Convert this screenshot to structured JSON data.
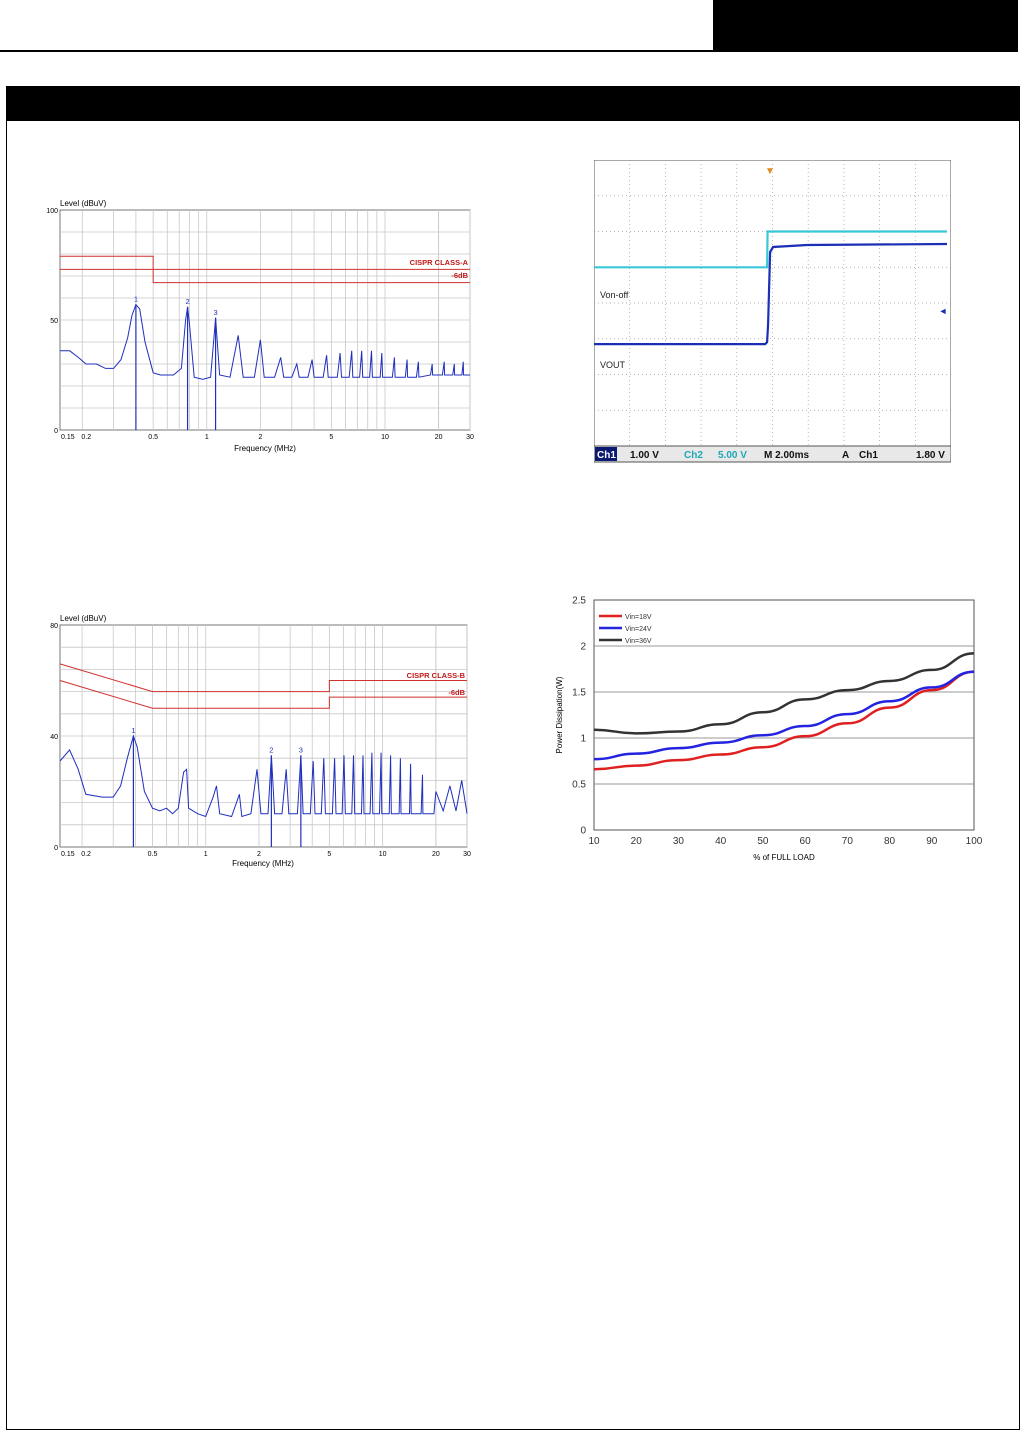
{
  "colors": {
    "emi_trace": "#1f2fbf",
    "limit_line": "#d0302c",
    "grid": "#c8c8c8",
    "scope_bg": "#ffffff",
    "scope_ch1": "#1b2fb4",
    "scope_ch2": "#38c8d8",
    "series_18v": "#e02020",
    "series_24v": "#2424e0",
    "series_36v": "#333333"
  },
  "chart_data": [
    {
      "id": "emi-class-a",
      "type": "line",
      "ylabel": "Level (dBuV)",
      "xlabel": "Frequency (MHz)",
      "xscale": "log",
      "xlim": [
        0.15,
        30
      ],
      "ylim": [
        0,
        100
      ],
      "x_tick_labels": [
        "0.15",
        "0.2",
        "0.5",
        "1",
        "2",
        "5",
        "10",
        "20",
        "30"
      ],
      "y_tick_labels": [
        "100",
        "50",
        "0"
      ],
      "limit_labels": [
        "CISPR CLASS-A",
        "-6dB"
      ],
      "marker_labels": [
        "1",
        "2",
        "3"
      ],
      "limits": [
        {
          "points": [
            [
              0.15,
              79
            ],
            [
              0.5,
              79
            ],
            [
              0.5,
              73
            ],
            [
              30,
              73
            ]
          ]
        },
        {
          "points": [
            [
              0.15,
              73
            ],
            [
              0.5,
              73
            ],
            [
              0.5,
              67
            ],
            [
              30,
              67
            ]
          ]
        }
      ],
      "markers": [
        {
          "label": "1",
          "x": 0.4,
          "y": 57
        },
        {
          "label": "2",
          "x": 0.78,
          "y": 56
        },
        {
          "label": "3",
          "x": 1.12,
          "y": 51
        }
      ],
      "trace": [
        [
          0.15,
          36
        ],
        [
          0.17,
          36
        ],
        [
          0.19,
          33
        ],
        [
          0.21,
          30
        ],
        [
          0.24,
          30
        ],
        [
          0.27,
          28
        ],
        [
          0.3,
          28
        ],
        [
          0.33,
          32
        ],
        [
          0.36,
          42
        ],
        [
          0.38,
          52
        ],
        [
          0.4,
          57
        ],
        [
          0.42,
          55
        ],
        [
          0.45,
          40
        ],
        [
          0.5,
          26
        ],
        [
          0.55,
          25
        ],
        [
          0.65,
          25
        ],
        [
          0.72,
          28
        ],
        [
          0.76,
          50
        ],
        [
          0.78,
          56
        ],
        [
          0.8,
          48
        ],
        [
          0.85,
          24
        ],
        [
          0.95,
          23
        ],
        [
          1.05,
          24
        ],
        [
          1.12,
          51
        ],
        [
          1.18,
          25
        ],
        [
          1.35,
          24
        ],
        [
          1.5,
          43
        ],
        [
          1.6,
          24
        ],
        [
          1.85,
          24
        ],
        [
          2.0,
          41
        ],
        [
          2.1,
          24
        ],
        [
          2.4,
          24
        ],
        [
          2.6,
          33
        ],
        [
          2.7,
          24
        ],
        [
          3.0,
          24
        ],
        [
          3.2,
          30
        ],
        [
          3.3,
          24
        ],
        [
          3.7,
          24
        ],
        [
          3.9,
          32
        ],
        [
          4.0,
          24
        ],
        [
          4.5,
          24
        ],
        [
          4.7,
          34
        ],
        [
          4.8,
          24
        ],
        [
          5.4,
          24
        ],
        [
          5.6,
          35
        ],
        [
          5.7,
          24
        ],
        [
          6.3,
          24
        ],
        [
          6.5,
          36
        ],
        [
          6.6,
          24
        ],
        [
          7.2,
          24
        ],
        [
          7.4,
          36
        ],
        [
          7.5,
          24
        ],
        [
          8.2,
          24
        ],
        [
          8.4,
          36
        ],
        [
          8.5,
          24
        ],
        [
          9.4,
          24
        ],
        [
          9.6,
          35
        ],
        [
          9.7,
          24
        ],
        [
          11,
          24
        ],
        [
          11.3,
          33
        ],
        [
          11.4,
          24
        ],
        [
          13,
          24
        ],
        [
          13.3,
          32
        ],
        [
          13.4,
          24
        ],
        [
          15,
          24
        ],
        [
          15.4,
          31
        ],
        [
          15.5,
          24
        ],
        [
          18,
          25
        ],
        [
          18.4,
          30
        ],
        [
          18.5,
          25
        ],
        [
          21,
          25
        ],
        [
          21.5,
          31
        ],
        [
          21.6,
          25
        ],
        [
          24,
          25
        ],
        [
          24.5,
          30
        ],
        [
          24.6,
          25
        ],
        [
          27,
          25
        ],
        [
          27.5,
          31
        ],
        [
          27.6,
          25
        ],
        [
          30,
          25
        ]
      ]
    },
    {
      "id": "turn-on-scope",
      "type": "line",
      "trace_labels": [
        "Von-off",
        "VOUT"
      ],
      "status_bar": [
        "Ch1",
        "1.00 V",
        "Ch2",
        "5.00 V",
        "M 2.00ms",
        "A",
        "Ch1",
        "1.80 V"
      ],
      "time_per_div_ms": 2.0,
      "traces": [
        {
          "name": "Von-off",
          "color_key": "scope_ch2",
          "low_div": 5.0,
          "high_div": 6.0,
          "step_div": 4.85
        },
        {
          "name": "VOUT",
          "color_key": "scope_ch1",
          "low_div": 2.85,
          "high_div": 5.65,
          "step_div": 4.85
        }
      ]
    },
    {
      "id": "emi-class-b",
      "type": "line",
      "ylabel": "Level (dBuV)",
      "xlabel": "Frequency (MHz)",
      "xscale": "log",
      "xlim": [
        0.15,
        30
      ],
      "ylim": [
        0,
        80
      ],
      "x_tick_labels": [
        "0.15",
        "0.2",
        "0.5",
        "1",
        "2",
        "5",
        "10",
        "20",
        "30"
      ],
      "y_tick_labels": [
        "80",
        "40",
        "0"
      ],
      "limit_labels": [
        "CISPR CLASS-B",
        "-6dB"
      ],
      "marker_labels": [
        "1",
        "2",
        "3"
      ],
      "limits": [
        {
          "points": [
            [
              0.15,
              66
            ],
            [
              0.5,
              56
            ],
            [
              5,
              56
            ],
            [
              5,
              60
            ],
            [
              30,
              60
            ]
          ]
        },
        {
          "points": [
            [
              0.15,
              60
            ],
            [
              0.5,
              50
            ],
            [
              5,
              50
            ],
            [
              5,
              54
            ],
            [
              30,
              54
            ]
          ]
        }
      ],
      "markers": [
        {
          "label": "1",
          "x": 0.39,
          "y": 40
        },
        {
          "label": "2",
          "x": 2.35,
          "y": 33
        },
        {
          "label": "3",
          "x": 3.45,
          "y": 33
        }
      ],
      "trace": [
        [
          0.15,
          31
        ],
        [
          0.17,
          35
        ],
        [
          0.19,
          28
        ],
        [
          0.21,
          19
        ],
        [
          0.26,
          18
        ],
        [
          0.3,
          18
        ],
        [
          0.33,
          22
        ],
        [
          0.36,
          32
        ],
        [
          0.39,
          40
        ],
        [
          0.41,
          36
        ],
        [
          0.45,
          20
        ],
        [
          0.5,
          14
        ],
        [
          0.55,
          13
        ],
        [
          0.6,
          14
        ],
        [
          0.65,
          12
        ],
        [
          0.7,
          14
        ],
        [
          0.75,
          27
        ],
        [
          0.78,
          28
        ],
        [
          0.8,
          14
        ],
        [
          0.9,
          12
        ],
        [
          1.0,
          11
        ],
        [
          1.1,
          18
        ],
        [
          1.15,
          22
        ],
        [
          1.2,
          12
        ],
        [
          1.4,
          11
        ],
        [
          1.55,
          19
        ],
        [
          1.6,
          11
        ],
        [
          1.8,
          12
        ],
        [
          1.95,
          28
        ],
        [
          2.05,
          12
        ],
        [
          2.25,
          12
        ],
        [
          2.35,
          33
        ],
        [
          2.45,
          12
        ],
        [
          2.7,
          12
        ],
        [
          2.85,
          28
        ],
        [
          2.95,
          12
        ],
        [
          3.3,
          12
        ],
        [
          3.45,
          33
        ],
        [
          3.55,
          12
        ],
        [
          3.9,
          12
        ],
        [
          4.05,
          31
        ],
        [
          4.15,
          12
        ],
        [
          4.5,
          12
        ],
        [
          4.65,
          32
        ],
        [
          4.75,
          12
        ],
        [
          5.2,
          12
        ],
        [
          5.35,
          32
        ],
        [
          5.45,
          12
        ],
        [
          5.9,
          12
        ],
        [
          6.05,
          33
        ],
        [
          6.15,
          12
        ],
        [
          6.7,
          12
        ],
        [
          6.85,
          33
        ],
        [
          6.95,
          12
        ],
        [
          7.6,
          12
        ],
        [
          7.75,
          33
        ],
        [
          7.85,
          12
        ],
        [
          8.5,
          12
        ],
        [
          8.7,
          34
        ],
        [
          8.8,
          12
        ],
        [
          9.6,
          12
        ],
        [
          9.8,
          34
        ],
        [
          9.9,
          12
        ],
        [
          10.9,
          12
        ],
        [
          11.1,
          33
        ],
        [
          11.2,
          12
        ],
        [
          12.4,
          12
        ],
        [
          12.6,
          32
        ],
        [
          12.7,
          12
        ],
        [
          14.2,
          12
        ],
        [
          14.4,
          30
        ],
        [
          14.5,
          12
        ],
        [
          16.5,
          12
        ],
        [
          16.8,
          26
        ],
        [
          16.9,
          12
        ],
        [
          19.5,
          12
        ],
        [
          20,
          20
        ],
        [
          22,
          13
        ],
        [
          24,
          22
        ],
        [
          26,
          13
        ],
        [
          28,
          24
        ],
        [
          30,
          12
        ]
      ]
    },
    {
      "id": "power-dissipation",
      "type": "line",
      "ylabel": "Power Dissipation(W)",
      "xlabel": "% of FULL LOAD",
      "x": [
        10,
        20,
        30,
        40,
        50,
        60,
        70,
        80,
        90,
        100
      ],
      "xlim": [
        10,
        100
      ],
      "ylim": [
        0,
        2.5
      ],
      "x_tick_labels": [
        "10",
        "20",
        "30",
        "40",
        "50",
        "60",
        "70",
        "80",
        "90",
        "100"
      ],
      "y_tick_labels": [
        "0",
        "0.5",
        "1",
        "1.5",
        "2",
        "2.5"
      ],
      "legend_position": "top-left",
      "series": [
        {
          "name": "Vin=18V",
          "color_key": "series_18v",
          "values": [
            0.66,
            0.7,
            0.76,
            0.82,
            0.9,
            1.02,
            1.16,
            1.33,
            1.52,
            1.72
          ]
        },
        {
          "name": "Vin=24V",
          "color_key": "series_24v",
          "values": [
            0.77,
            0.83,
            0.89,
            0.95,
            1.03,
            1.13,
            1.26,
            1.4,
            1.55,
            1.72
          ]
        },
        {
          "name": "Vin=36V",
          "color_key": "series_36v",
          "values": [
            1.09,
            1.05,
            1.07,
            1.15,
            1.28,
            1.42,
            1.52,
            1.62,
            1.74,
            1.92
          ]
        }
      ]
    }
  ]
}
